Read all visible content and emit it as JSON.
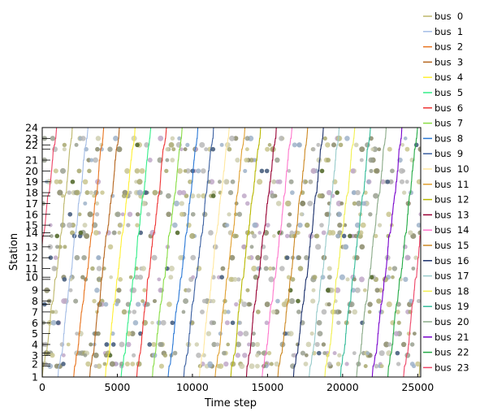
{
  "chart_data": {
    "type": "line",
    "xlabel": "Time step",
    "ylabel": "Station",
    "xlim": [
      0,
      25200
    ],
    "ylim": [
      1,
      24
    ],
    "x_ticks": [
      0,
      5000,
      10000,
      15000,
      20000,
      25000
    ],
    "x_tick_labels": [
      "0",
      "5000",
      "10000",
      "15000",
      "20000",
      "25000"
    ],
    "station_positions": [
      1,
      2,
      2.2,
      3,
      3.2,
      4,
      5,
      6,
      7,
      7.7,
      8,
      9,
      10,
      10.2,
      11,
      12,
      13,
      14,
      14.3,
      15,
      16,
      17,
      17.7,
      18,
      19,
      20,
      21,
      22,
      22.4,
      23,
      24
    ],
    "y_tick_labels": [
      {
        "value": 1,
        "label": "1"
      },
      {
        "value": 2.2,
        "label": "2"
      },
      {
        "value": 3,
        "label": "3"
      },
      {
        "value": 4,
        "label": "4"
      },
      {
        "value": 5,
        "label": "5"
      },
      {
        "value": 6,
        "label": "6"
      },
      {
        "value": 7,
        "label": "7"
      },
      {
        "value": 8,
        "label": "8"
      },
      {
        "value": 9,
        "label": "9"
      },
      {
        "value": 10.2,
        "label": "10"
      },
      {
        "value": 11,
        "label": "11"
      },
      {
        "value": 12,
        "label": "12"
      },
      {
        "value": 13,
        "label": "13"
      },
      {
        "value": 14.3,
        "label": "14"
      },
      {
        "value": 15,
        "label": "15"
      },
      {
        "value": 16,
        "label": "16"
      },
      {
        "value": 17,
        "label": "17"
      },
      {
        "value": 18,
        "label": "18"
      },
      {
        "value": 19,
        "label": "19"
      },
      {
        "value": 20,
        "label": "20"
      },
      {
        "value": 21,
        "label": "21"
      },
      {
        "value": 22.4,
        "label": "22"
      },
      {
        "value": 23,
        "label": "23"
      },
      {
        "value": 24,
        "label": "24"
      }
    ],
    "trip_duration": 2000,
    "headway": 1045,
    "series": [
      {
        "name": "bus  0",
        "color": "#bdb76b",
        "first_departure": 0
      },
      {
        "name": "bus  1",
        "color": "#a4bde6",
        "first_departure": 1045
      },
      {
        "name": "bus  2",
        "color": "#e8741e",
        "first_departure": 2090
      },
      {
        "name": "bus  3",
        "color": "#b5651d",
        "first_departure": 3135
      },
      {
        "name": "bus  4",
        "color": "#fff033",
        "first_departure": 4180
      },
      {
        "name": "bus  5",
        "color": "#33ee88",
        "first_departure": 5225
      },
      {
        "name": "bus  6",
        "color": "#ee3333",
        "first_departure": 6270
      },
      {
        "name": "bus  7",
        "color": "#88dd44",
        "first_departure": 7315
      },
      {
        "name": "bus  8",
        "color": "#2a78d6",
        "first_departure": 8360
      },
      {
        "name": "bus  9",
        "color": "#3a5fa0",
        "first_departure": 9405
      },
      {
        "name": "bus  10",
        "color": "#ffe8a0",
        "first_departure": 10450
      },
      {
        "name": "bus  11",
        "color": "#e0a030",
        "first_departure": 11495
      },
      {
        "name": "bus  12",
        "color": "#b8b800",
        "first_departure": 12540
      },
      {
        "name": "bus  13",
        "color": "#990033",
        "first_departure": 13585
      },
      {
        "name": "bus  14",
        "color": "#ff77cc",
        "first_departure": 14630
      },
      {
        "name": "bus  15",
        "color": "#cc8822",
        "first_departure": 15675
      },
      {
        "name": "bus  16",
        "color": "#1a2f6b",
        "first_departure": 16720
      },
      {
        "name": "bus  17",
        "color": "#99cccc",
        "first_departure": 17765
      },
      {
        "name": "bus  18",
        "color": "#f2f050",
        "first_departure": 18810
      },
      {
        "name": "bus  19",
        "color": "#33bb99",
        "first_departure": 19855
      },
      {
        "name": "bus  20",
        "color": "#8aaa88",
        "first_departure": 20900
      },
      {
        "name": "bus  21",
        "color": "#7700cc",
        "first_departure": 21945
      },
      {
        "name": "bus  22",
        "color": "#22aa44",
        "first_departure": 22990
      },
      {
        "name": "bus  23",
        "color": "#ee4466",
        "first_departure": 24035
      }
    ],
    "grid": false,
    "legend_position": "outside-right"
  }
}
